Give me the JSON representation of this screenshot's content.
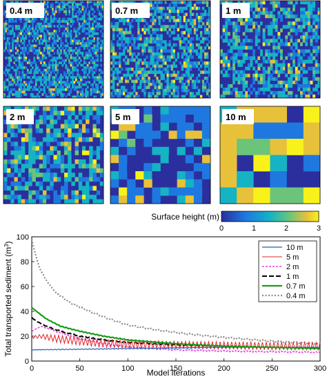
{
  "panels": [
    {
      "label": "0.4 m"
    },
    {
      "label": "0.7 m"
    },
    {
      "label": "1 m"
    },
    {
      "label": "2 m"
    },
    {
      "label": "5 m"
    },
    {
      "label": "10 m"
    }
  ],
  "colorbar": {
    "label": "Surface height (m)",
    "ticks": [
      "0",
      "1",
      "2",
      "3"
    ],
    "range": [
      0,
      3
    ],
    "colors": [
      "#2b2f9e",
      "#1f78e0",
      "#15b3c4",
      "#6cc47a",
      "#e8c13a",
      "#f9f21a"
    ]
  },
  "chart_data": {
    "type": "line",
    "xlabel": "Model iterations",
    "ylabel": "Total transported sediment (m",
    "ylabel_sup": "3",
    "ylabel_close": ")",
    "xlim": [
      0,
      300
    ],
    "ylim": [
      0,
      100
    ],
    "xticks": [
      "0",
      "50",
      "100",
      "150",
      "200",
      "250",
      "300"
    ],
    "yticks": [
      "0",
      "20",
      "40",
      "60",
      "80",
      "100"
    ],
    "legend_position": "top-right",
    "series": [
      {
        "name": "10 m",
        "color": "#1f5fbf",
        "dash": "none",
        "width": 1.2,
        "x": [
          0,
          50,
          100,
          150,
          200,
          250,
          300
        ],
        "y": [
          9,
          9.5,
          10,
          10.5,
          11,
          11,
          11
        ],
        "oscillation": 0.3
      },
      {
        "name": "5 m",
        "color": "#e0242c",
        "dash": "none",
        "width": 1.0,
        "x": [
          0,
          10,
          25,
          50,
          75,
          100,
          150,
          200,
          250,
          300
        ],
        "y": [
          19,
          20,
          18,
          16,
          14,
          13.5,
          13,
          12.5,
          12,
          12
        ],
        "oscillation": 3.0
      },
      {
        "name": "2 m",
        "color": "#e040e0",
        "dash": "3,2",
        "width": 1.6,
        "x": [
          0,
          10,
          25,
          50,
          75,
          100,
          150,
          200,
          250,
          300
        ],
        "y": [
          24,
          28,
          24,
          18,
          14,
          11,
          9,
          8,
          7.5,
          7
        ],
        "oscillation": 0.5
      },
      {
        "name": "1 m",
        "color": "#000000",
        "dash": "7,3",
        "width": 2.0,
        "x": [
          0,
          5,
          15,
          30,
          50,
          75,
          100,
          150,
          200,
          250,
          300
        ],
        "y": [
          35,
          32,
          28,
          24,
          20,
          17,
          15,
          13,
          12,
          11,
          10.5
        ],
        "oscillation": 0.4
      },
      {
        "name": "0.7 m",
        "color": "#1a9a1a",
        "dash": "none",
        "width": 2.2,
        "x": [
          0,
          5,
          15,
          30,
          50,
          75,
          100,
          150,
          200,
          250,
          300
        ],
        "y": [
          43,
          40,
          34,
          28,
          24,
          20,
          17,
          14,
          12,
          11,
          10
        ],
        "oscillation": 0.3
      },
      {
        "name": "0.4 m",
        "color": "#8c8c8c",
        "dash": "2,2.5",
        "width": 2.2,
        "x": [
          0,
          3,
          8,
          15,
          25,
          40,
          60,
          80,
          100,
          130,
          160,
          200,
          250,
          300
        ],
        "y": [
          98,
          88,
          75,
          65,
          55,
          47,
          40,
          34,
          29,
          25,
          22,
          19,
          16,
          14
        ],
        "oscillation": 0.5
      }
    ]
  }
}
